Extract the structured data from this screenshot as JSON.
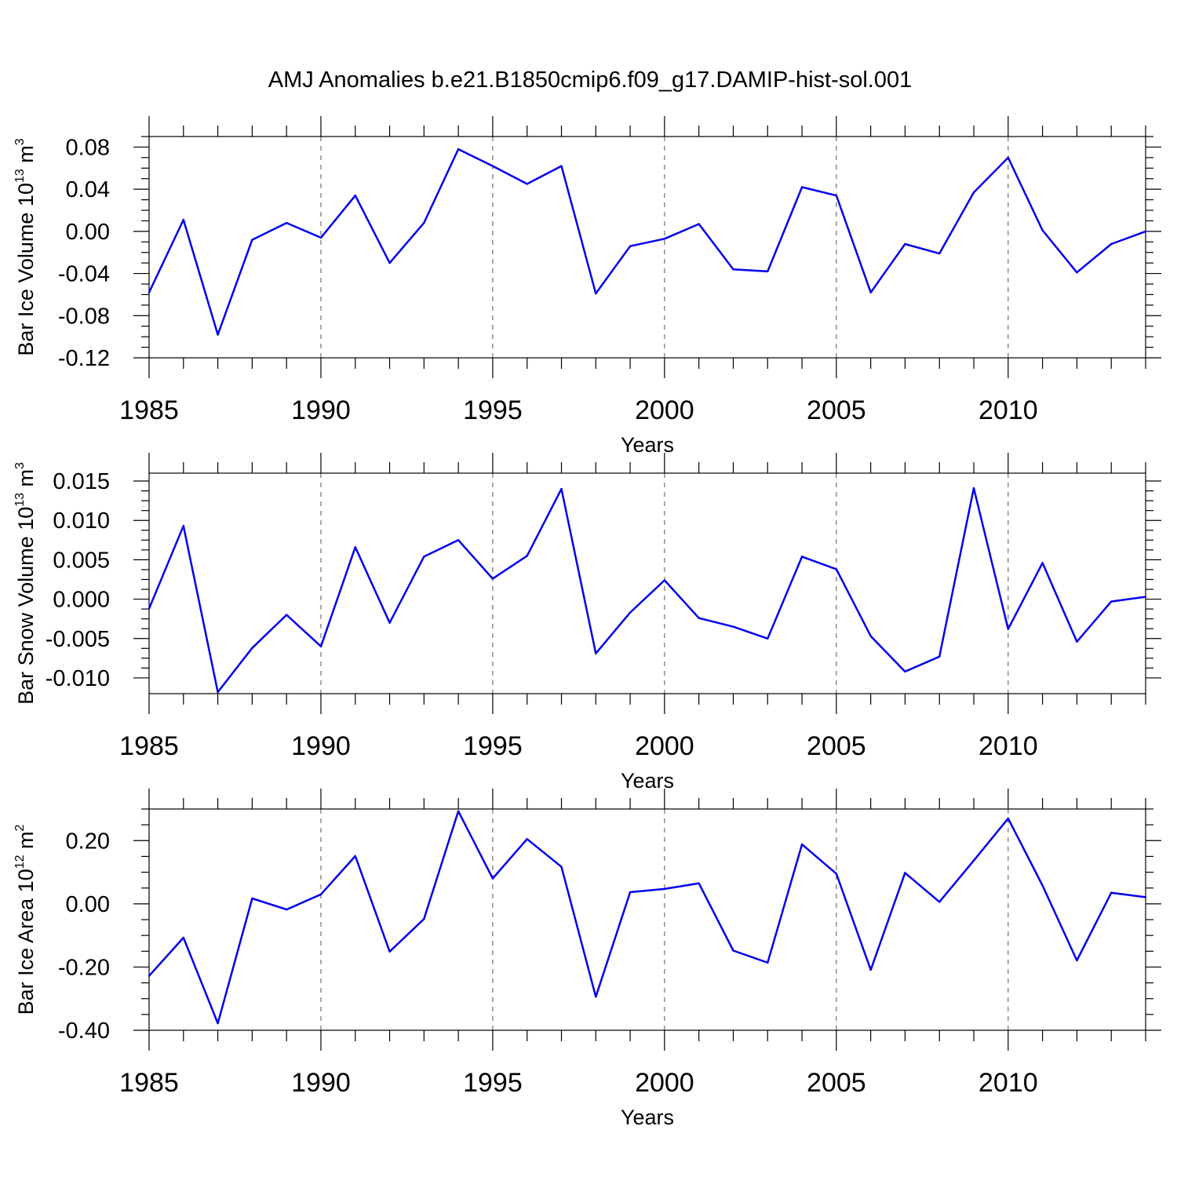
{
  "title": "AMJ Anomalies b.e21.B1850cmip6.f09_g17.DAMIP-hist-sol.001",
  "series_color": "#0000ee",
  "chart_data": [
    {
      "type": "line",
      "ylabel_main": "Bar Ice Volume 10",
      "ylabel_exp": "13",
      "ylabel_unit": " m",
      "ylabel_unit_exp": "3",
      "xlabel": "Years",
      "xlim": [
        1985,
        2014
      ],
      "ylim": [
        -0.12,
        0.09
      ],
      "yticks": [
        0.08,
        0.04,
        0.0,
        -0.04,
        -0.08,
        -0.12
      ],
      "ytick_labels": [
        "0.08",
        "0.04",
        "0.00",
        "-0.04",
        "-0.08",
        "-0.12"
      ],
      "xticks": [
        1985,
        1990,
        1995,
        2000,
        2005,
        2010
      ],
      "xtick_labels": [
        "1985",
        "1990",
        "1995",
        "2000",
        "2005",
        "2010"
      ],
      "x": [
        1985,
        1986,
        1987,
        1988,
        1989,
        1990,
        1991,
        1992,
        1993,
        1994,
        1995,
        1996,
        1997,
        1998,
        1999,
        2000,
        2001,
        2002,
        2003,
        2004,
        2005,
        2006,
        2007,
        2008,
        2009,
        2010,
        2011,
        2012,
        2013,
        2014
      ],
      "values": [
        -0.058,
        0.011,
        -0.098,
        -0.008,
        0.008,
        -0.006,
        0.034,
        -0.03,
        0.008,
        0.078,
        0.062,
        0.045,
        0.062,
        -0.059,
        -0.014,
        -0.007,
        0.007,
        -0.036,
        -0.038,
        0.042,
        0.034,
        -0.058,
        -0.012,
        -0.021,
        0.037,
        0.07,
        0.001,
        -0.039,
        -0.012,
        0.0
      ]
    },
    {
      "type": "line",
      "ylabel_main": "Bar Snow Volume 10",
      "ylabel_exp": "13",
      "ylabel_unit": " m",
      "ylabel_unit_exp": "3",
      "xlabel": "Years",
      "xlim": [
        1985,
        2014
      ],
      "ylim": [
        -0.012,
        0.016
      ],
      "yticks": [
        0.015,
        0.01,
        0.005,
        0.0,
        -0.005,
        -0.01
      ],
      "ytick_labels": [
        "0.015",
        "0.010",
        "0.005",
        "0.000",
        "-0.005",
        "-0.010"
      ],
      "xticks": [
        1985,
        1990,
        1995,
        2000,
        2005,
        2010
      ],
      "xtick_labels": [
        "1985",
        "1990",
        "1995",
        "2000",
        "2005",
        "2010"
      ],
      "x": [
        1985,
        1986,
        1987,
        1988,
        1989,
        1990,
        1991,
        1992,
        1993,
        1994,
        1995,
        1996,
        1997,
        1998,
        1999,
        2000,
        2001,
        2002,
        2003,
        2004,
        2005,
        2006,
        2007,
        2008,
        2009,
        2010,
        2011,
        2012,
        2013,
        2014
      ],
      "values": [
        -0.0012,
        0.0093,
        -0.0118,
        -0.0062,
        -0.002,
        -0.006,
        0.0066,
        -0.003,
        0.0054,
        0.0075,
        0.0026,
        0.0055,
        0.014,
        -0.0069,
        -0.0017,
        0.0024,
        -0.0024,
        -0.0035,
        -0.005,
        0.0054,
        0.0038,
        -0.0047,
        -0.0092,
        -0.0073,
        0.0141,
        -0.0038,
        0.0046,
        -0.0054,
        -0.0003,
        0.0003
      ]
    },
    {
      "type": "line",
      "ylabel_main": "Bar Ice Area 10",
      "ylabel_exp": "12",
      "ylabel_unit": " m",
      "ylabel_unit_exp": "2",
      "xlabel": "Years",
      "xlim": [
        1985,
        2014
      ],
      "ylim": [
        -0.4,
        0.3
      ],
      "yticks": [
        0.2,
        0.0,
        -0.2,
        -0.4
      ],
      "ytick_labels": [
        "0.20",
        "0.00",
        "-0.20",
        "-0.40"
      ],
      "xticks": [
        1985,
        1990,
        1995,
        2000,
        2005,
        2010
      ],
      "xtick_labels": [
        "1985",
        "1990",
        "1995",
        "2000",
        "2005",
        "2010"
      ],
      "x": [
        1985,
        1986,
        1987,
        1988,
        1989,
        1990,
        1991,
        1992,
        1993,
        1994,
        1995,
        1996,
        1997,
        1998,
        1999,
        2000,
        2001,
        2002,
        2003,
        2004,
        2005,
        2006,
        2007,
        2008,
        2009,
        2010,
        2011,
        2012,
        2013,
        2014
      ],
      "values": [
        -0.228,
        -0.107,
        -0.378,
        0.017,
        -0.018,
        0.03,
        0.151,
        -0.151,
        -0.048,
        0.293,
        0.08,
        0.205,
        0.117,
        -0.294,
        0.037,
        0.047,
        0.065,
        -0.148,
        -0.186,
        0.188,
        0.095,
        -0.209,
        0.098,
        0.006,
        0.137,
        0.27,
        0.058,
        -0.179,
        0.035,
        0.021
      ]
    }
  ]
}
